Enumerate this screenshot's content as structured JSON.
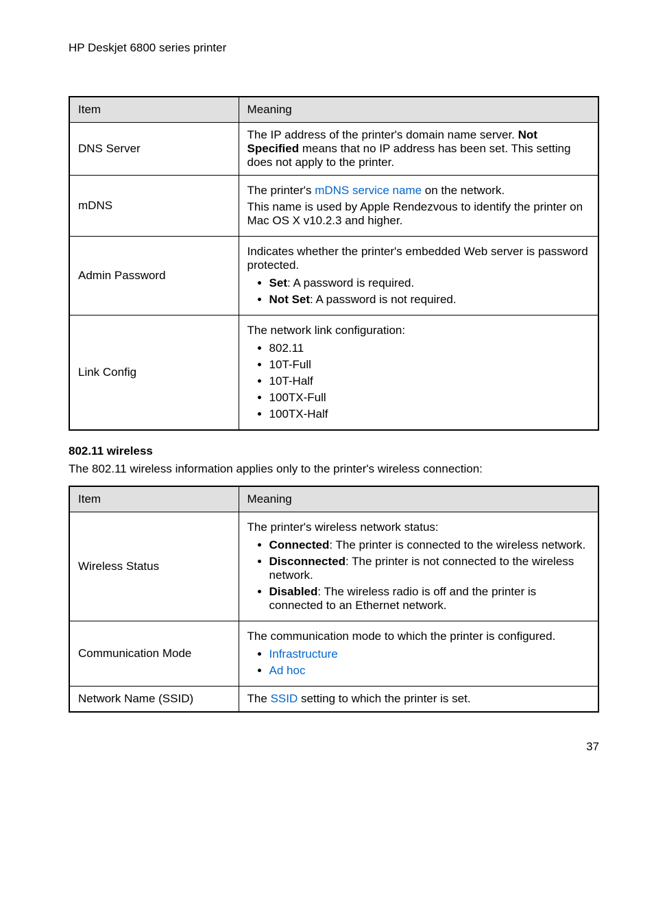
{
  "header": "HP Deskjet 6800 series printer",
  "table1": {
    "head": {
      "c0": "Item",
      "c1": "Meaning"
    },
    "rows": {
      "dns": {
        "label": "DNS Server",
        "text_pre": "The IP address of the printer's domain name server. ",
        "bold": "Not Specified",
        "text_post": " means that no IP address has been set. This setting does not apply to the printer."
      },
      "mdns": {
        "label": "mDNS",
        "line1_pre": "The printer's ",
        "line1_link": "mDNS service name",
        "line1_post": " on the network.",
        "line2": "This name is used by Apple Rendezvous to identify the printer on Mac OS X v10.2.3 and higher."
      },
      "admin": {
        "label": "Admin Password",
        "intro": "Indicates whether the printer's embedded Web server is password protected.",
        "b1_bold": "Set",
        "b1_rest": ": A password is required.",
        "b2_bold": "Not Set",
        "b2_rest": ": A password is not required."
      },
      "link": {
        "label": "Link Config",
        "intro": "The network link configuration:",
        "i0": "802.11",
        "i1": "10T-Full",
        "i2": "10T-Half",
        "i3": "100TX-Full",
        "i4": "100TX-Half"
      }
    }
  },
  "wireless_head": "802.11 wireless",
  "wireless_desc": "The 802.11 wireless information applies only to the printer's wireless connection:",
  "table2": {
    "head": {
      "c0": "Item",
      "c1": "Meaning"
    },
    "rows": {
      "status": {
        "label": "Wireless Status",
        "intro": "The printer's wireless network status:",
        "b1_bold": "Connected",
        "b1_rest": ": The printer is connected to the wireless network.",
        "b2_bold": "Disconnected",
        "b2_rest": ": The printer is not connected to the wireless network.",
        "b3_bold": "Disabled",
        "b3_rest": ": The wireless radio is off and the printer is connected to an Ethernet network."
      },
      "comm": {
        "label": "Communication Mode",
        "intro": "The communication mode to which the printer is configured.",
        "l0": "Infrastructure",
        "l1": "Ad hoc"
      },
      "ssid": {
        "label": "Network Name (SSID)",
        "pre": "The ",
        "link": "SSID",
        "post": " setting to which the printer is set."
      }
    }
  },
  "page_num": "37"
}
